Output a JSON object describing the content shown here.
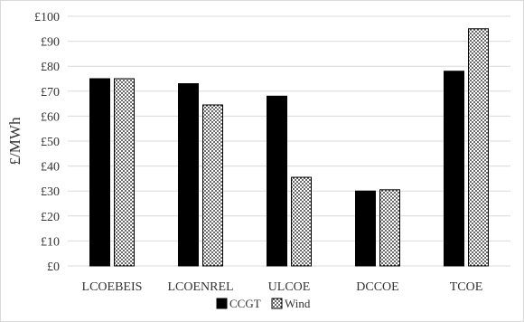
{
  "chart_data": {
    "type": "bar",
    "title": "",
    "xlabel": "",
    "ylabel": "£/MWh",
    "categories": [
      "LCOEBEIS",
      "LCOENREL",
      "ULCOE",
      "DCCOE",
      "TCOE"
    ],
    "series": [
      {
        "name": "CCGT",
        "values": [
          75,
          73,
          68,
          30,
          78
        ],
        "color": "#000000",
        "fill": "solid"
      },
      {
        "name": "Wind",
        "values": [
          75,
          64.5,
          35.5,
          30.5,
          95
        ],
        "color": "#000000",
        "fill": "dotted"
      }
    ],
    "ylim": [
      0,
      100
    ],
    "yticks": [
      "£0",
      "£10",
      "£20",
      "£30",
      "£40",
      "£50",
      "£60",
      "£70",
      "£80",
      "£90",
      "£100"
    ],
    "grid": true,
    "legend_position": "bottom"
  }
}
